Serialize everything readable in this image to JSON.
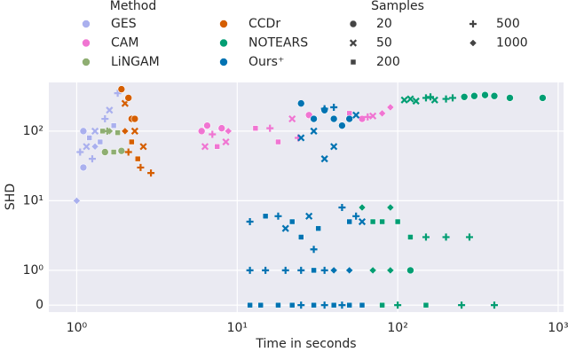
{
  "chart_data": {
    "type": "scatter",
    "x_label": "Time in seconds",
    "y_label": "SHD",
    "xscale": "log",
    "yscale": "symlog",
    "linthresh": 1,
    "xlim": [
      0.67,
      1080
    ],
    "ylim": [
      -0.2,
      500
    ],
    "xticks": [
      {
        "value": 1,
        "label": "10⁰"
      },
      {
        "value": 10,
        "label": "10¹"
      },
      {
        "value": 100,
        "label": "10²"
      },
      {
        "value": 1000,
        "label": "10³"
      }
    ],
    "yticks": [
      0,
      {
        "value": 1,
        "label": "10⁰"
      },
      {
        "value": 10,
        "label": "10¹"
      },
      {
        "value": 100,
        "label": "10²"
      }
    ],
    "grid": true,
    "legend_title": "Method",
    "sizes_title": "Samples",
    "sizes": [
      20,
      50,
      200,
      500,
      1000
    ],
    "size_markers": [
      "circle",
      "x",
      "square",
      "plus",
      "diamond"
    ],
    "series": [
      {
        "name": "GES",
        "color": "#aab0ee",
        "x": [
          1.0,
          1.05,
          1.1,
          1.15,
          1.2,
          1.25,
          1.3,
          1.4,
          1.5,
          1.6,
          1.8,
          1.9,
          1.1,
          1.3,
          1.7
        ],
        "values": [
          10,
          50,
          30,
          60,
          80,
          40,
          100,
          70,
          150,
          200,
          350,
          400,
          100,
          60,
          120
        ],
        "samples": [
          1000,
          500,
          20,
          50,
          200,
          500,
          50,
          200,
          500,
          50,
          500,
          20,
          20,
          1000,
          200
        ]
      },
      {
        "name": "CAM",
        "color": "#f075d2",
        "x": [
          6,
          6.3,
          6.5,
          7,
          7.5,
          8,
          8.5,
          8.8,
          13,
          16,
          18,
          22,
          24,
          28,
          50,
          60,
          65,
          70,
          80,
          90
        ],
        "values": [
          100,
          60,
          120,
          90,
          60,
          110,
          70,
          100,
          110,
          110,
          70,
          150,
          80,
          170,
          180,
          150,
          160,
          165,
          180,
          220
        ],
        "samples": [
          20,
          50,
          20,
          500,
          200,
          20,
          50,
          1000,
          200,
          500,
          200,
          50,
          500,
          20,
          200,
          20,
          500,
          50,
          1000,
          1000
        ]
      },
      {
        "name": "LiNGAM",
        "color": "#8fae72",
        "x": [
          1.45,
          1.5,
          1.6,
          1.7,
          1.8,
          1.9,
          1.55
        ],
        "values": [
          100,
          50,
          100,
          50,
          95,
          52,
          100
        ],
        "samples": [
          200,
          20,
          1000,
          200,
          200,
          20,
          500
        ]
      },
      {
        "name": "CCDr",
        "color": "#d55e00",
        "x": [
          1.9,
          2.0,
          2.1,
          2.2,
          2.3,
          2.2,
          2.1,
          2.4,
          2.5,
          2.9,
          2.3,
          2.0,
          2.6
        ],
        "values": [
          400,
          250,
          300,
          150,
          100,
          70,
          50,
          40,
          30,
          25,
          150,
          100,
          60
        ],
        "samples": [
          20,
          50,
          20,
          20,
          50,
          200,
          500,
          200,
          500,
          500,
          20,
          1000,
          50
        ]
      },
      {
        "name": "NOTEARS",
        "color": "#029e73",
        "x": [
          110,
          120,
          150,
          170,
          200,
          220,
          260,
          300,
          350,
          400,
          500,
          800,
          160,
          130,
          70,
          80,
          90,
          100,
          120,
          150,
          200,
          280,
          70,
          90,
          120,
          80,
          100,
          150,
          250,
          400,
          60
        ],
        "values": [
          280,
          290,
          300,
          280,
          290,
          300,
          310,
          320,
          330,
          320,
          300,
          300,
          310,
          270,
          5,
          5,
          8,
          5,
          3,
          3,
          3,
          3,
          1,
          1,
          1,
          0,
          0,
          0,
          0,
          0,
          8
        ],
        "samples": [
          50,
          50,
          500,
          50,
          500,
          500,
          20,
          20,
          20,
          20,
          20,
          20,
          500,
          50,
          200,
          200,
          1000,
          200,
          200,
          500,
          500,
          500,
          1000,
          1000,
          20,
          200,
          500,
          200,
          500,
          500,
          1000
        ]
      },
      {
        "name": "Ours⁺",
        "color": "#0173b2",
        "x": [
          25,
          30,
          35,
          40,
          45,
          50,
          30,
          35,
          40,
          55,
          12,
          15,
          18,
          20,
          22,
          25,
          28,
          30,
          32,
          35,
          40,
          45,
          50,
          55,
          60,
          25,
          12,
          15,
          20,
          25,
          30,
          35,
          40,
          50,
          12,
          14,
          18,
          22,
          25,
          30,
          35,
          40,
          45,
          50,
          60
        ],
        "values": [
          250,
          150,
          200,
          150,
          120,
          150,
          100,
          210,
          220,
          170,
          5,
          6,
          6,
          4,
          5,
          3,
          6,
          2,
          4,
          40,
          60,
          8,
          5,
          6,
          5,
          80,
          1,
          1,
          1,
          1,
          1,
          1,
          1,
          1,
          0,
          0,
          0,
          0,
          0,
          0,
          0,
          0,
          0,
          0,
          0
        ],
        "samples": [
          20,
          20,
          20,
          20,
          20,
          20,
          50,
          500,
          500,
          50,
          500,
          200,
          500,
          50,
          200,
          200,
          50,
          500,
          200,
          50,
          50,
          500,
          200,
          500,
          50,
          50,
          500,
          500,
          500,
          500,
          200,
          500,
          1000,
          1000,
          200,
          200,
          200,
          200,
          500,
          200,
          500,
          200,
          500,
          200,
          200
        ]
      }
    ]
  }
}
